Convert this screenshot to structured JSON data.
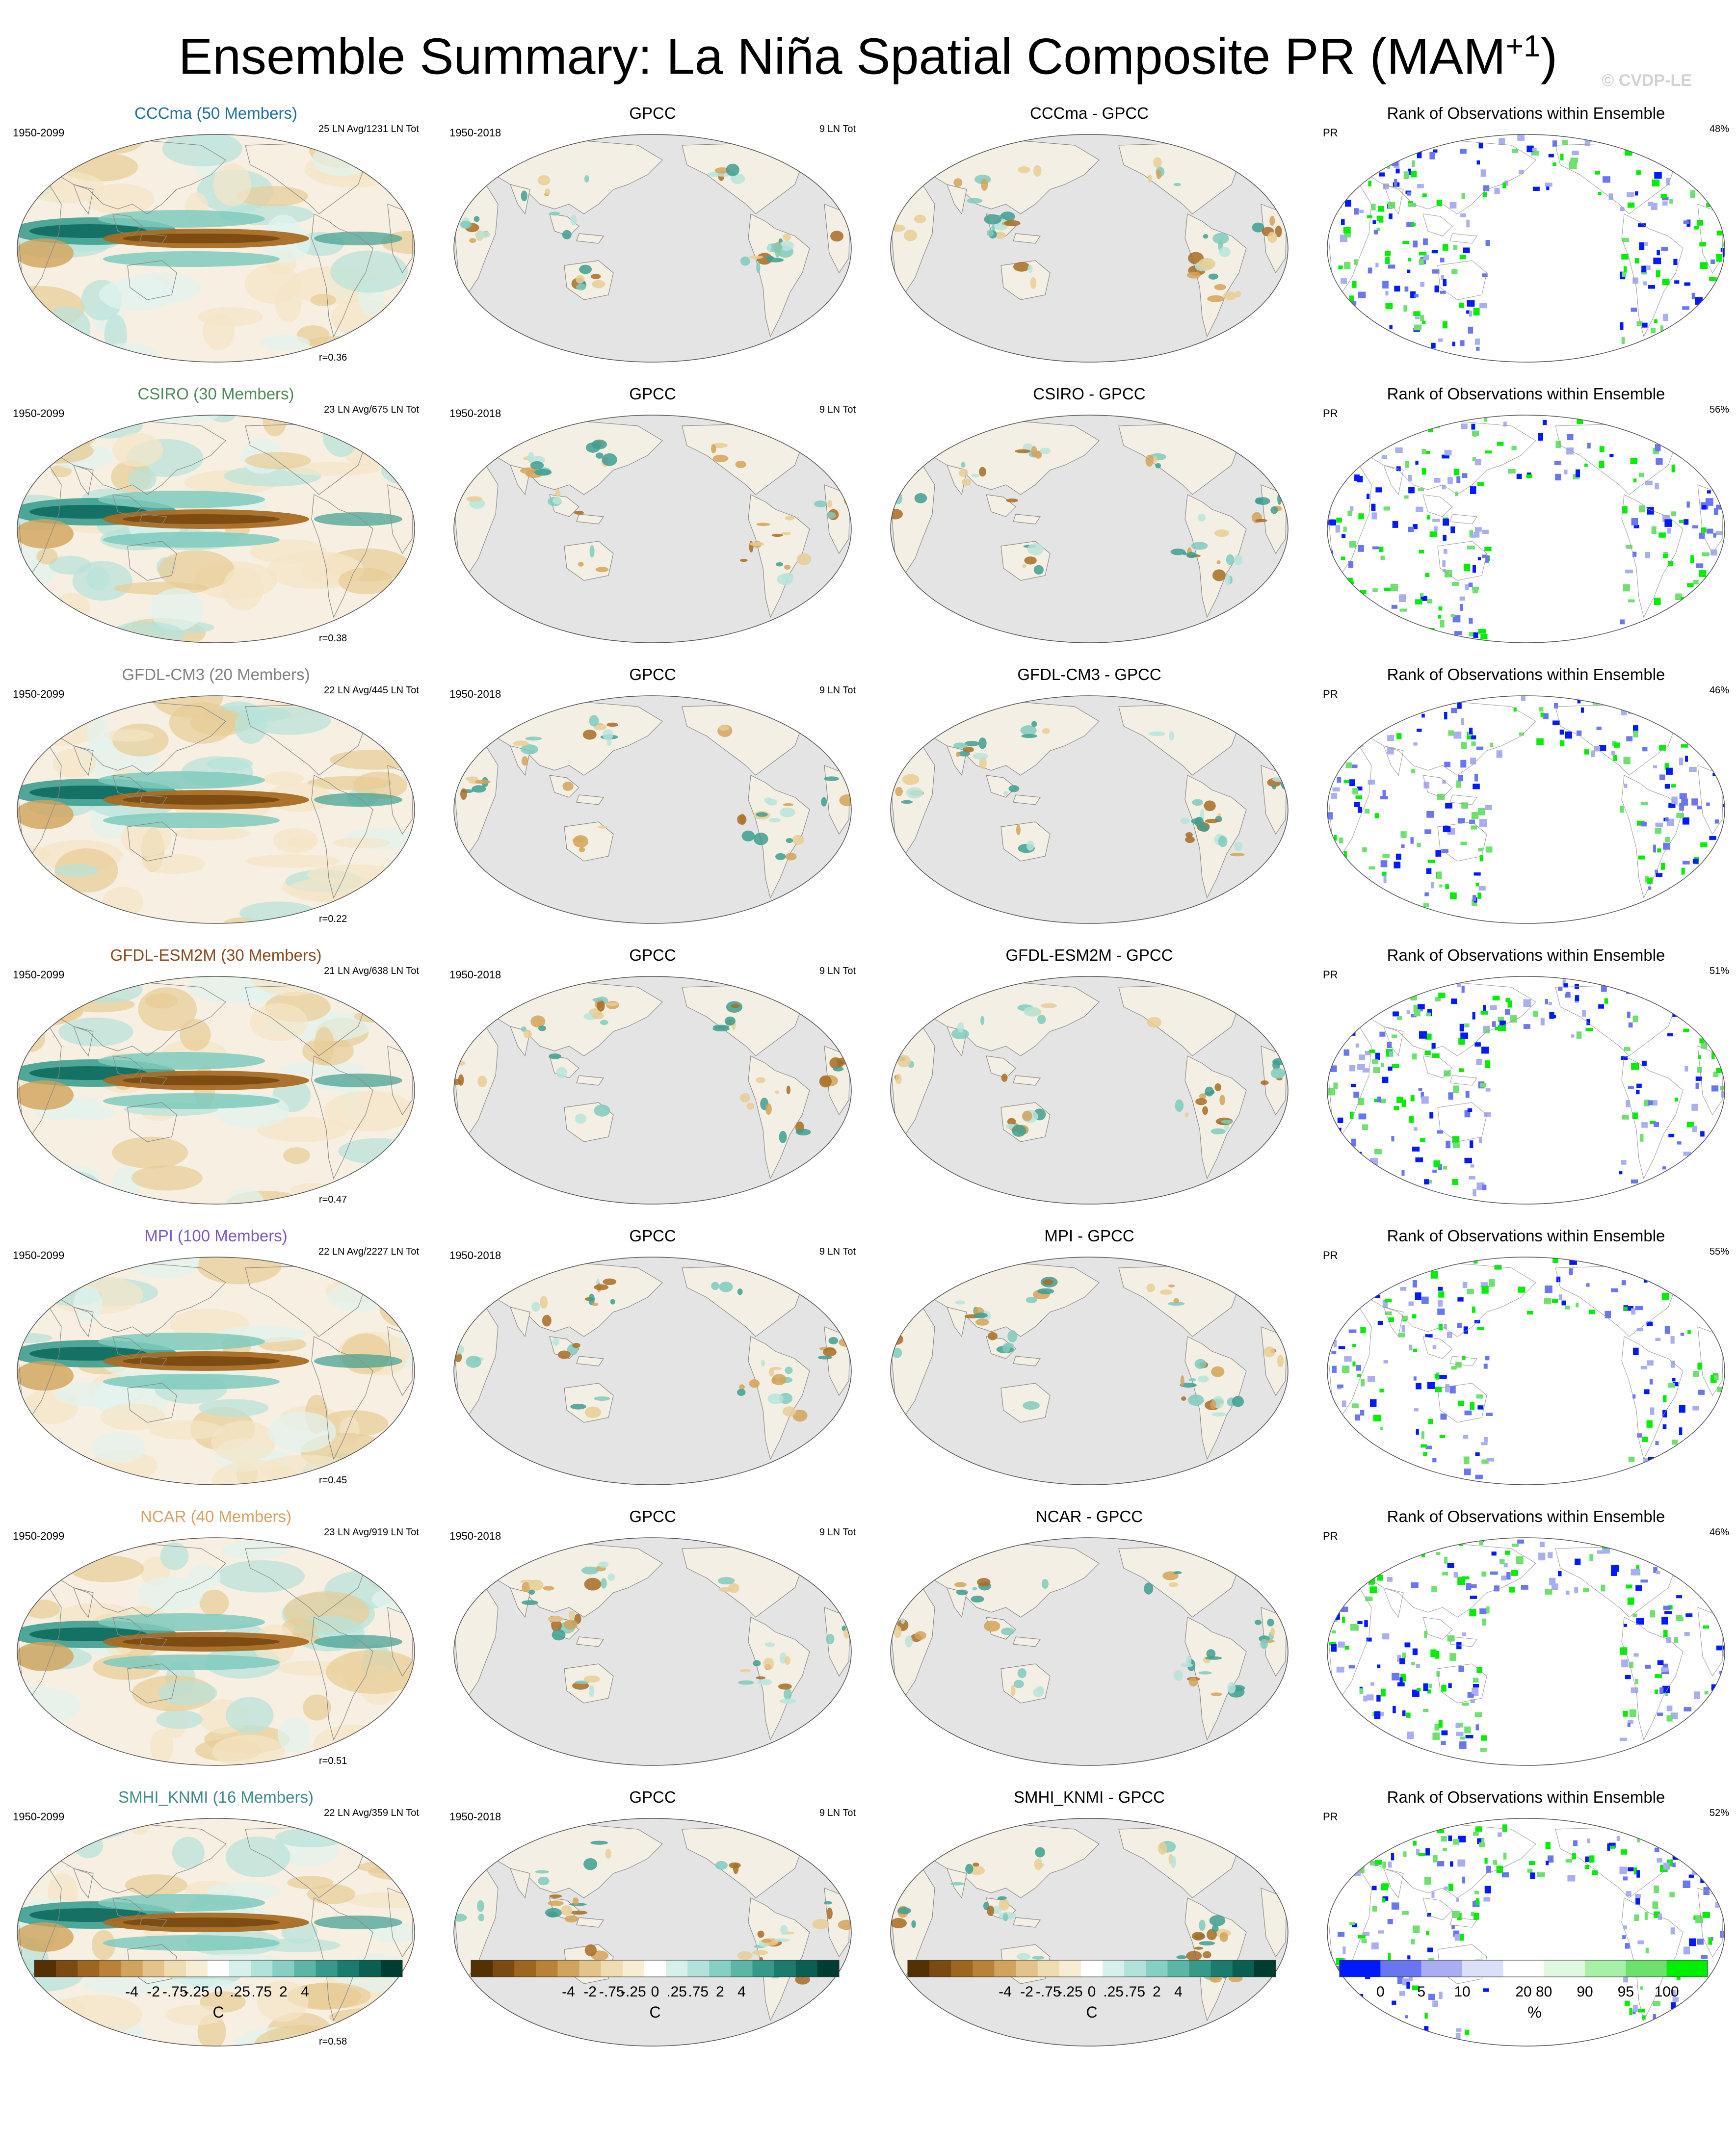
{
  "page": {
    "title_main": "Ensemble Summary: La Niña Spatial Composite PR (MAM",
    "title_sup": "+1",
    "title_close": ")",
    "copyright": "© CVDP-LE"
  },
  "columns": {
    "obs_title": "GPCC",
    "obs_years": "1950-2018",
    "obs_events": "9 LN Tot",
    "rank_title": "Rank of Observations within Ensemble",
    "rank_var": "PR",
    "model_years": "1950-2099"
  },
  "rows": [
    {
      "model": "CCCma (50 Members)",
      "model_color": "#1f6f9b",
      "events": "25 LN Avg/1231 LN Tot",
      "r": "r=0.36",
      "diff": "CCCma - GPCC",
      "rank_pct": "48%"
    },
    {
      "model": "CSIRO (30 Members)",
      "model_color": "#4e8a58",
      "events": "23 LN Avg/675 LN Tot",
      "r": "r=0.38",
      "diff": "CSIRO - GPCC",
      "rank_pct": "56%"
    },
    {
      "model": "GFDL-CM3 (20 Members)",
      "model_color": "#808080",
      "events": "22 LN Avg/445 LN Tot",
      "r": "r=0.22",
      "diff": "GFDL-CM3 - GPCC",
      "rank_pct": "46%"
    },
    {
      "model": "GFDL-ESM2M (30 Members)",
      "model_color": "#8a4a1c",
      "events": "21 LN Avg/638 LN Tot",
      "r": "r=0.47",
      "diff": "GFDL-ESM2M - GPCC",
      "rank_pct": "51%"
    },
    {
      "model": "MPI (100 Members)",
      "model_color": "#7b55c4",
      "events": "22 LN Avg/2227 LN Tot",
      "r": "r=0.45",
      "diff": "MPI - GPCC",
      "rank_pct": "55%"
    },
    {
      "model": "NCAR (40 Members)",
      "model_color": "#d9a066",
      "events": "23 LN Avg/919 LN Tot",
      "r": "r=0.51",
      "diff": "NCAR - GPCC",
      "rank_pct": "46%"
    },
    {
      "model": "SMHI_KNMI (16 Members)",
      "model_color": "#3f8a8a",
      "events": "22 LN Avg/359 LN Tot",
      "r": "r=0.58",
      "diff": "SMHI_KNMI - GPCC",
      "rank_pct": "52%"
    }
  ],
  "colorbars": {
    "diverging": {
      "ticks": [
        "-4",
        "-2",
        "-.75",
        "-.25",
        "0",
        ".25",
        ".75",
        "2",
        "4"
      ],
      "unit": "C",
      "colors": [
        "#543005",
        "#7a4a12",
        "#9c6620",
        "#b98238",
        "#d0a35e",
        "#e2c38c",
        "#f0dcb2",
        "#f7ecd4",
        "#ffffff",
        "#d8f0ec",
        "#b2e2da",
        "#86cfc2",
        "#5db5a6",
        "#36998a",
        "#1a7b6e",
        "#0b5e52",
        "#003c30"
      ]
    },
    "rank": {
      "ticks": [
        "0",
        "5",
        "10",
        "20",
        "80",
        "90",
        "95",
        "100"
      ],
      "unit": "%",
      "colors": [
        "#0019ff",
        "#6a76f0",
        "#a9aef0",
        "#dcdff8",
        "#ffffff",
        "#dff8df",
        "#a8f0a8",
        "#6de06d",
        "#00ee00"
      ]
    }
  }
}
